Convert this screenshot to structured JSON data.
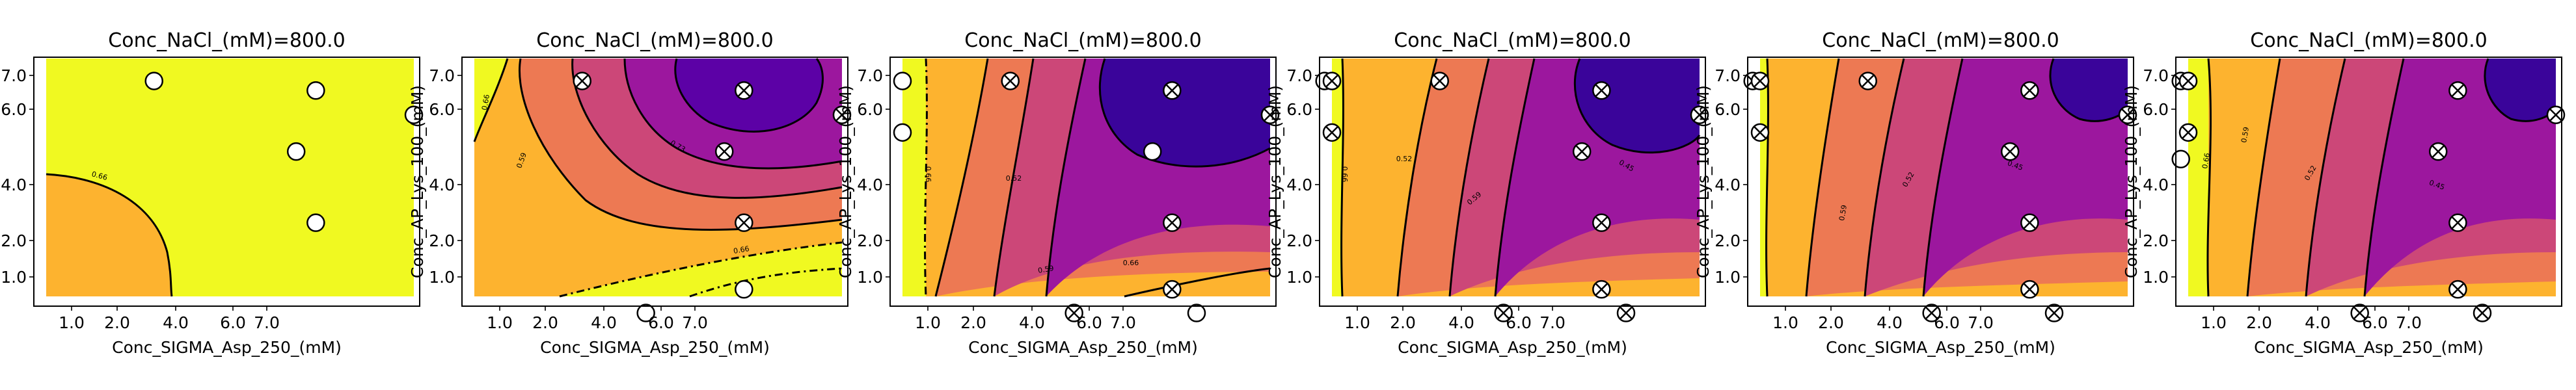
{
  "figure": {
    "colors": {
      "level_0": "#f0f921",
      "level_1": "#fdb32f",
      "level_2": "#ed7953",
      "level_3": "#cc4778",
      "level_4": "#9c179e",
      "level_5": "#5c01a6",
      "level_6": "#3a049a",
      "contour_line": "#000000",
      "marker_edge": "#000000",
      "marker_face": "#ffffff"
    }
  },
  "chart_data": [
    {
      "type": "contour",
      "title": "Conc_NaCl_(mM)=800.0",
      "xlabel": "Conc_SIGMA_Asp_250_(mM)",
      "ylabel": "Conc_AP_Lys_100_(mM)",
      "x_ticks": [
        "1.0",
        "2.0",
        "4.0",
        "6.0",
        "7.0"
      ],
      "y_ticks": [
        "1.0",
        "2.0",
        "4.0",
        "6.0",
        "7.0"
      ],
      "xlim": [
        0.5,
        8.0
      ],
      "ylim": [
        0.5,
        8.0
      ],
      "contour_labels": [
        "0.66"
      ],
      "points": [
        {
          "x": 2.7,
          "y": 7.7,
          "crossed": false
        },
        {
          "x": 6.0,
          "y": 7.2,
          "crossed": false
        },
        {
          "x": 8.0,
          "y": 6.0,
          "crossed": false
        },
        {
          "x": 5.6,
          "y": 4.4,
          "crossed": false
        },
        {
          "x": 6.0,
          "y": 2.0,
          "crossed": false
        }
      ]
    },
    {
      "type": "contour",
      "title": "Conc_NaCl_(mM)=800.0",
      "xlabel": "Conc_SIGMA_Asp_250_(mM)",
      "ylabel": "Conc_AP_Lys_100_(mM)",
      "x_ticks": [
        "1.0",
        "2.0",
        "4.0",
        "6.0",
        "7.0"
      ],
      "y_ticks": [
        "1.0",
        "2.0",
        "4.0",
        "6.0",
        "7.0"
      ],
      "xlim": [
        0.5,
        8.0
      ],
      "ylim": [
        0.5,
        8.0
      ],
      "contour_labels": [
        "0.66",
        "0.59",
        "0.73",
        "0.66"
      ],
      "points": [
        {
          "x": 2.7,
          "y": 7.7,
          "crossed": true
        },
        {
          "x": 6.0,
          "y": 7.2,
          "crossed": true
        },
        {
          "x": 8.0,
          "y": 6.0,
          "crossed": true
        },
        {
          "x": 5.6,
          "y": 4.4,
          "crossed": true
        },
        {
          "x": 6.0,
          "y": 2.0,
          "crossed": true
        },
        {
          "x": 4.0,
          "y": 0.3,
          "crossed": false
        },
        {
          "x": 6.0,
          "y": 0.6,
          "crossed": false
        }
      ]
    },
    {
      "type": "contour",
      "title": "Conc_NaCl_(mM)=800.0",
      "xlabel": "Conc_SIGMA_Asp_250_(mM)",
      "ylabel": "Conc_AP_Lys_100_(mM)",
      "x_ticks": [
        "1.0",
        "2.0",
        "4.0",
        "6.0",
        "7.0"
      ],
      "y_ticks": [
        "1.0",
        "2.0",
        "4.0",
        "6.0",
        "7.0"
      ],
      "xlim": [
        0.5,
        8.0
      ],
      "ylim": [
        0.5,
        8.0
      ],
      "contour_labels": [
        "0.66",
        "0.52",
        "0.59",
        "0.66"
      ],
      "points": [
        {
          "x": 0.5,
          "y": 7.7,
          "crossed": false
        },
        {
          "x": 2.7,
          "y": 7.7,
          "crossed": true
        },
        {
          "x": 6.0,
          "y": 7.2,
          "crossed": true
        },
        {
          "x": 8.0,
          "y": 6.0,
          "crossed": true
        },
        {
          "x": 0.5,
          "y": 5.2,
          "crossed": false
        },
        {
          "x": 5.6,
          "y": 4.4,
          "crossed": false
        },
        {
          "x": 6.0,
          "y": 2.0,
          "crossed": true
        },
        {
          "x": 4.0,
          "y": 0.3,
          "crossed": true
        },
        {
          "x": 6.0,
          "y": 0.6,
          "crossed": true
        },
        {
          "x": 6.5,
          "y": 0.3,
          "crossed": false
        }
      ]
    },
    {
      "type": "contour",
      "title": "Conc_NaCl_(mM)=800.0",
      "xlabel": "Conc_SIGMA_Asp_250_(mM)",
      "ylabel": "Conc_AP_Lys_100_(mM)",
      "x_ticks": [
        "1.0",
        "2.0",
        "4.0",
        "6.0",
        "7.0"
      ],
      "y_ticks": [
        "1.0",
        "2.0",
        "4.0",
        "6.0",
        "7.0"
      ],
      "xlim": [
        0.5,
        8.0
      ],
      "ylim": [
        0.5,
        8.0
      ],
      "contour_labels": [
        "0.66",
        "0.52",
        "0.59",
        "0.45"
      ],
      "points": [
        {
          "x": 0.35,
          "y": 7.7,
          "crossed": false
        },
        {
          "x": 0.5,
          "y": 7.7,
          "crossed": true
        },
        {
          "x": 2.7,
          "y": 7.7,
          "crossed": true
        },
        {
          "x": 6.0,
          "y": 7.2,
          "crossed": true
        },
        {
          "x": 8.0,
          "y": 6.0,
          "crossed": true
        },
        {
          "x": 0.5,
          "y": 5.2,
          "crossed": true
        },
        {
          "x": 5.6,
          "y": 4.4,
          "crossed": true
        },
        {
          "x": 6.0,
          "y": 2.0,
          "crossed": true
        },
        {
          "x": 4.0,
          "y": 0.3,
          "crossed": true
        },
        {
          "x": 6.0,
          "y": 0.6,
          "crossed": true
        },
        {
          "x": 6.5,
          "y": 0.3,
          "crossed": true
        }
      ]
    },
    {
      "type": "contour",
      "title": "Conc_NaCl_(mM)=800.0",
      "xlabel": "Conc_SIGMA_Asp_250_(mM)",
      "ylabel": "Conc_AP_Lys_100_(mM)",
      "x_ticks": [
        "1.0",
        "2.0",
        "4.0",
        "6.0",
        "7.0"
      ],
      "y_ticks": [
        "1.0",
        "2.0",
        "4.0",
        "6.0",
        "7.0"
      ],
      "xlim": [
        0.5,
        8.0
      ],
      "ylim": [
        0.5,
        8.0
      ],
      "contour_labels": [
        "0.59",
        "0.52",
        "0.45"
      ],
      "points": [
        {
          "x": 0.35,
          "y": 7.7,
          "crossed": true
        },
        {
          "x": 0.5,
          "y": 7.7,
          "crossed": true
        },
        {
          "x": 2.7,
          "y": 7.7,
          "crossed": true
        },
        {
          "x": 6.0,
          "y": 7.2,
          "crossed": true
        },
        {
          "x": 8.0,
          "y": 6.0,
          "crossed": true
        },
        {
          "x": 0.5,
          "y": 5.2,
          "crossed": true
        },
        {
          "x": 5.6,
          "y": 4.4,
          "crossed": true
        },
        {
          "x": 6.0,
          "y": 2.0,
          "crossed": true
        },
        {
          "x": 4.0,
          "y": 0.3,
          "crossed": true
        },
        {
          "x": 6.0,
          "y": 0.6,
          "crossed": true
        },
        {
          "x": 6.5,
          "y": 0.3,
          "crossed": true
        }
      ]
    },
    {
      "type": "contour",
      "title": "Conc_NaCl_(mM)=800.0",
      "xlabel": "Conc_SIGMA_Asp_250_(mM)",
      "ylabel": "Conc_AP_Lys_100_(mM)",
      "x_ticks": [
        "1.0",
        "2.0",
        "4.0",
        "6.0",
        "7.0"
      ],
      "y_ticks": [
        "1.0",
        "2.0",
        "4.0",
        "6.0",
        "7.0"
      ],
      "xlim": [
        0.5,
        8.0
      ],
      "ylim": [
        0.5,
        8.0
      ],
      "contour_labels": [
        "0.66",
        "0.59",
        "0.52",
        "0.45"
      ],
      "points": [
        {
          "x": 0.35,
          "y": 7.7,
          "crossed": true
        },
        {
          "x": 0.5,
          "y": 7.7,
          "crossed": true
        },
        {
          "x": 6.0,
          "y": 7.2,
          "crossed": true
        },
        {
          "x": 8.0,
          "y": 6.0,
          "crossed": true
        },
        {
          "x": 0.5,
          "y": 5.2,
          "crossed": true
        },
        {
          "x": 0.35,
          "y": 4.1,
          "crossed": false
        },
        {
          "x": 5.6,
          "y": 4.4,
          "crossed": true
        },
        {
          "x": 6.0,
          "y": 2.0,
          "crossed": true
        },
        {
          "x": 4.0,
          "y": 0.3,
          "crossed": true
        },
        {
          "x": 6.0,
          "y": 0.6,
          "crossed": true
        },
        {
          "x": 6.5,
          "y": 0.3,
          "crossed": true
        }
      ]
    }
  ]
}
